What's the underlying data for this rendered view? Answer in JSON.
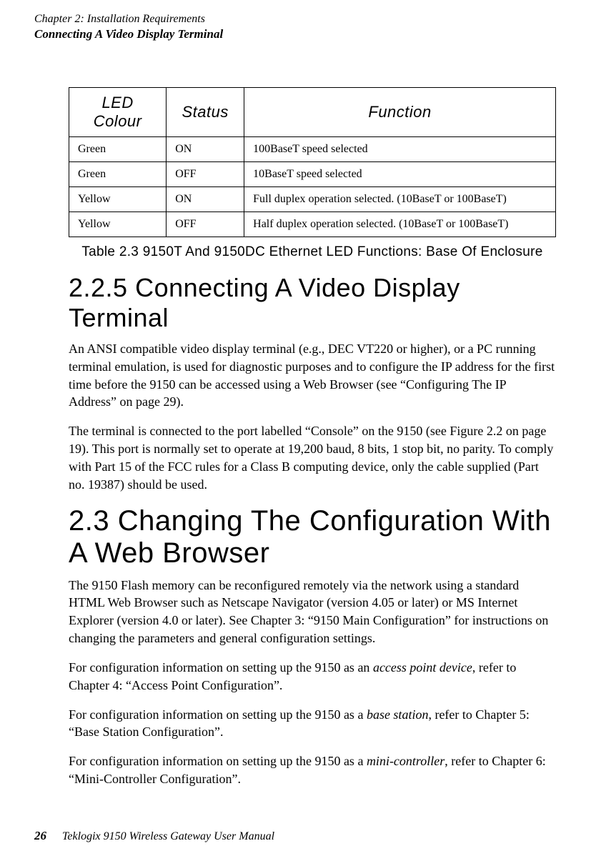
{
  "header": {
    "chapter": "Chapter 2:  Installation Requirements",
    "section": "Connecting A Video Display Terminal"
  },
  "table": {
    "columns": [
      "LED Colour",
      "Status",
      "Function"
    ],
    "rows": [
      [
        "Green",
        "ON",
        "100BaseT speed selected"
      ],
      [
        "Green",
        "OFF",
        "10BaseT speed selected"
      ],
      [
        "Yellow",
        "ON",
        "Full duplex operation selected. (10BaseT or 100BaseT)"
      ],
      [
        "Yellow",
        "OFF",
        "Half duplex operation selected. (10BaseT or 100BaseT)"
      ]
    ],
    "title": "Table 2.3 9150T And 9150DC Ethernet LED Functions: Base Of Enclosure"
  },
  "section_225": {
    "heading": "2.2.5  Connecting A Video Display Terminal",
    "p1": "An ANSI compatible video display terminal (e.g., DEC VT220 or higher), or a PC running terminal emulation, is used for diagnostic purposes and to configure the IP address for the first time before the 9150 can be accessed using a Web Browser (see “Configuring The IP Address” on page 29).",
    "p2": "The terminal is connected to the port labelled “Console” on the 9150 (see Figure 2.2 on page 19). This port is normally set to operate at 19,200 baud, 8 bits, 1 stop bit, no parity. To comply with Part 15 of the FCC rules for a Class B computing device, only the cable supplied (Part no. 19387) should be used."
  },
  "section_23": {
    "heading": "2.3  Changing The Configuration With A Web Browser",
    "p1": "The 9150 Flash memory can be reconfigured remotely via the network using a standard HTML Web Browser such as Netscape Navigator (version 4.05 or later) or MS Internet Explorer (version 4.0 or later). See Chapter 3: “9150 Main Configuration” for instructions on changing the parameters and general configuration settings.",
    "p2_pre": "For configuration information on setting up the 9150 as an ",
    "p2_italic": "access point device",
    "p2_post": ", refer to Chapter 4: “Access Point Configuration”.",
    "p3_pre": "For configuration information on setting up the 9150 as a ",
    "p3_italic": "base station",
    "p3_post": ", refer to Chapter 5: “Base Station Configuration”.",
    "p4_pre": "For configuration information on setting up the 9150 as a ",
    "p4_italic": "mini-controller",
    "p4_post": ", refer to Chapter 6: “Mini-Controller Configuration”."
  },
  "footer": {
    "page": "26",
    "title": "Teklogix 9150 Wireless Gateway User Manual"
  }
}
